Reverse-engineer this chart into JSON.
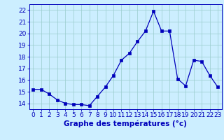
{
  "hours": [
    0,
    1,
    2,
    3,
    4,
    5,
    6,
    7,
    8,
    9,
    10,
    11,
    12,
    13,
    14,
    15,
    16,
    17,
    18,
    19,
    20,
    21,
    22,
    23
  ],
  "temperatures": [
    15.2,
    15.2,
    14.8,
    14.3,
    14.0,
    13.9,
    13.9,
    13.8,
    14.6,
    15.4,
    16.4,
    17.7,
    18.3,
    19.3,
    20.2,
    21.9,
    20.2,
    20.2,
    16.1,
    15.5,
    17.7,
    17.6,
    16.4,
    15.4
  ],
  "line_color": "#0000bb",
  "marker": "s",
  "marker_size": 2.5,
  "bg_color": "#cceeff",
  "grid_color": "#99cccc",
  "xlabel": "Graphe des températures (°c)",
  "xlabel_color": "#0000bb",
  "xlabel_fontsize": 7.5,
  "tick_color": "#0000bb",
  "tick_fontsize": 6.5,
  "ylim": [
    13.5,
    22.5
  ],
  "yticks": [
    14,
    15,
    16,
    17,
    18,
    19,
    20,
    21,
    22
  ],
  "xlim": [
    -0.5,
    23.5
  ],
  "xticks": [
    0,
    1,
    2,
    3,
    4,
    5,
    6,
    7,
    8,
    9,
    10,
    11,
    12,
    13,
    14,
    15,
    16,
    17,
    18,
    19,
    20,
    21,
    22,
    23
  ]
}
